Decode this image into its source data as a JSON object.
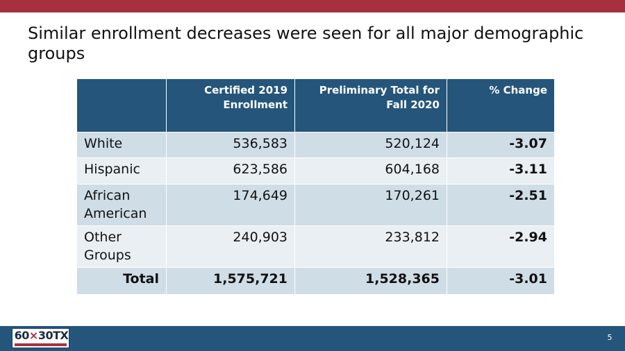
{
  "slide": {
    "title": "Similar enrollment decreases were seen for all major demographic groups",
    "page_number": "5"
  },
  "table": {
    "headers": [
      "",
      "Certified 2019 Enrollment",
      "Preliminary Total for Fall 2020",
      "% Change"
    ],
    "rows": [
      {
        "group": "White",
        "y2019": "536,583",
        "y2020": "520,124",
        "change": "-3.07"
      },
      {
        "group": "Hispanic",
        "y2019": "623,586",
        "y2020": "604,168",
        "change": "-3.11"
      },
      {
        "group": "African American",
        "y2019": "174,649",
        "y2020": "170,261",
        "change": "-2.51"
      },
      {
        "group": "Other Groups",
        "y2019": "240,903",
        "y2020": "233,812",
        "change": "-2.94"
      }
    ],
    "total": {
      "group": "Total",
      "y2019": "1,575,721",
      "y2020": "1,528,365",
      "change": "-3.01"
    }
  },
  "logo": {
    "text_prefix": "60",
    "text_x": "×",
    "text_suffix": "30TX"
  },
  "colors": {
    "accent_red": "#a6303e",
    "header_blue": "#25557a",
    "row_dark": "#cfdde6",
    "row_light": "#e9eff3"
  }
}
